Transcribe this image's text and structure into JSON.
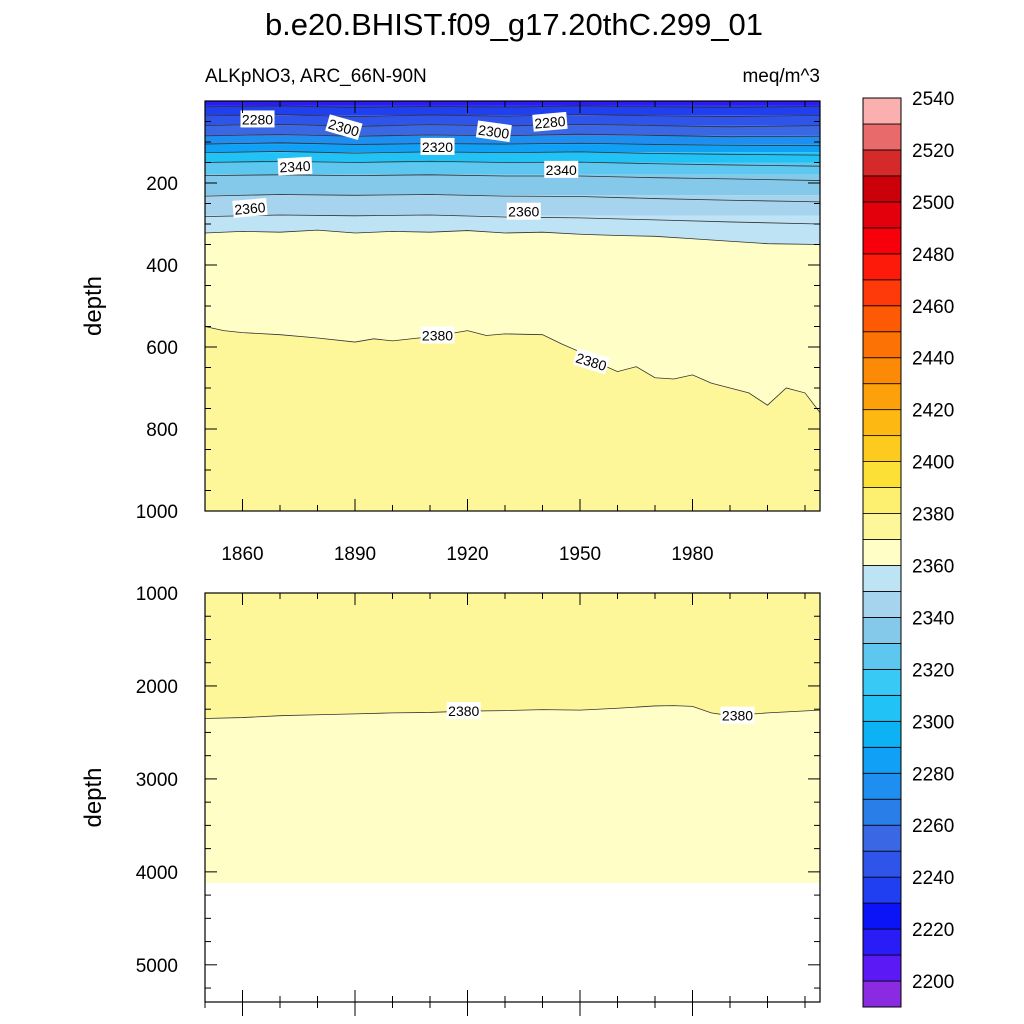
{
  "chart_data": {
    "type": "contour",
    "title": "b.e20.BHIST.f09_g17.20thC.299_01",
    "left_subtitle": "ALKpNO3, ARC_66N-90N",
    "right_subtitle": "meq/m^3",
    "colors": {
      "frame": "#000000",
      "contour_line": "#333333"
    },
    "colorbar": {
      "levels_from": 2200,
      "levels_to": 2560,
      "level_step": 10,
      "tick_labels": [
        "2200",
        "2220",
        "2240",
        "2260",
        "2280",
        "2300",
        "2320",
        "2340",
        "2360",
        "2380",
        "2400",
        "2420",
        "2440",
        "2460",
        "2480",
        "2500",
        "2520",
        "2540"
      ],
      "colors": [
        "#8a2be2",
        "#5b19f5",
        "#2a1cf7",
        "#0a14f7",
        "#1f3ff0",
        "#2f54ea",
        "#3a68e4",
        "#2a7ee8",
        "#1e8ff0",
        "#10a0f5",
        "#0db2f5",
        "#21c2f5",
        "#38caf5",
        "#5ec7f0",
        "#85c9ea",
        "#a6d4ee",
        "#bde3f4",
        "#fefec6",
        "#fef79a",
        "#fdf070",
        "#fde036",
        "#fdcb1d",
        "#fdb812",
        "#fda10a",
        "#fd8a06",
        "#fd7205",
        "#fe5a06",
        "#fe3a0a",
        "#fe1a0a",
        "#f7000c",
        "#e3000c",
        "#cb0009",
        "#d62a2a",
        "#e86a6a",
        "#fbb0b0"
      ]
    },
    "x_axis": {
      "min": 1850,
      "max": 2014,
      "ticks": [
        1860,
        1890,
        1920,
        1950,
        1980
      ],
      "tick_labels": [
        "1860",
        "1890",
        "1920",
        "1950",
        "1980"
      ]
    },
    "panels": [
      {
        "ylabel": "depth",
        "ylim": [
          0,
          1000
        ],
        "y_ticks": [
          200,
          400,
          600,
          800,
          1000
        ],
        "y_tick_labels": [
          "200",
          "400",
          "600",
          "800",
          "1000"
        ],
        "bands": [
          {
            "top": 0,
            "bottom": 12,
            "color": "#2a1cf7"
          },
          {
            "top": 12,
            "bottom": 35,
            "color": "#1f3ff0"
          },
          {
            "top": 35,
            "bottom": 60,
            "color": "#2f54ea"
          },
          {
            "top": 60,
            "bottom": 85,
            "color": "#3a68e4"
          },
          {
            "top": 85,
            "bottom": 105,
            "color": "#1e8ff0"
          },
          {
            "top": 105,
            "bottom": 125,
            "color": "#10a0f5"
          },
          {
            "top": 125,
            "bottom": 150,
            "color": "#21c2f5"
          },
          {
            "top": 150,
            "bottom": 180,
            "color": "#5ec7f0"
          },
          {
            "top": 180,
            "bottom": 230,
            "color": "#85c9ea"
          },
          {
            "top": 230,
            "bottom": 280,
            "color": "#a6d4ee"
          },
          {
            "top": 280,
            "bottom": null,
            "color": "#bde3f4"
          }
        ],
        "boundary_2360": {
          "x": [
            1850,
            1860,
            1870,
            1880,
            1890,
            1900,
            1910,
            1920,
            1930,
            1940,
            1950,
            1960,
            1970,
            1980,
            1990,
            2000,
            2014
          ],
          "y": [
            322,
            318,
            320,
            315,
            322,
            318,
            320,
            316,
            322,
            320,
            325,
            328,
            330,
            336,
            342,
            348,
            350
          ]
        },
        "boundary_2380": {
          "x": [
            1850,
            1855,
            1860,
            1870,
            1880,
            1890,
            1895,
            1900,
            1910,
            1915,
            1920,
            1925,
            1930,
            1940,
            1945,
            1950,
            1955,
            1960,
            1965,
            1970,
            1975,
            1980,
            1985,
            1990,
            1995,
            2000,
            2005,
            2010,
            2014
          ],
          "y": [
            550,
            560,
            565,
            570,
            578,
            588,
            580,
            585,
            575,
            568,
            560,
            572,
            568,
            570,
            592,
            612,
            640,
            660,
            648,
            675,
            678,
            668,
            688,
            700,
            712,
            742,
            700,
            712,
            760
          ]
        },
        "contour_lines": [
          {
            "x": [
              1850,
              1870,
              1890,
              1910,
              1930,
              1950,
              1970,
              1990,
              2014
            ],
            "y": [
              14,
              12,
              16,
              13,
              15,
              12,
              14,
              16,
              13
            ]
          },
          {
            "x": [
              1850,
              1870,
              1890,
              1910,
              1930,
              1950,
              1970,
              1990,
              2014
            ],
            "y": [
              36,
              33,
              38,
              34,
              37,
              33,
              36,
              38,
              35
            ]
          },
          {
            "x": [
              1850,
              1870,
              1890,
              1910,
              1930,
              1950,
              1970,
              1990,
              2014
            ],
            "y": [
              60,
              57,
              62,
              58,
              61,
              57,
              60,
              63,
              60
            ]
          },
          {
            "x": [
              1850,
              1870,
              1890,
              1910,
              1930,
              1950,
              1970,
              1990,
              2014
            ],
            "y": [
              85,
              82,
              86,
              83,
              85,
              81,
              84,
              87,
              86
            ]
          },
          {
            "x": [
              1850,
              1870,
              1890,
              1910,
              1930,
              1950,
              1970,
              1990,
              2014
            ],
            "y": [
              105,
              102,
              106,
              104,
              105,
              103,
              106,
              108,
              109
            ]
          },
          {
            "x": [
              1850,
              1870,
              1890,
              1910,
              1930,
              1950,
              1970,
              1990,
              2014
            ],
            "y": [
              126,
              123,
              127,
              124,
              126,
              124,
              128,
              130,
              132
            ]
          },
          {
            "x": [
              1850,
              1870,
              1890,
              1910,
              1930,
              1950,
              1970,
              1990,
              2014
            ],
            "y": [
              150,
              147,
              150,
              147,
              150,
              149,
              153,
              156,
              159
            ]
          },
          {
            "x": [
              1850,
              1870,
              1890,
              1910,
              1930,
              1950,
              1970,
              1990,
              2014
            ],
            "y": [
              182,
              180,
              182,
              180,
              183,
              183,
              187,
              190,
              194
            ]
          },
          {
            "x": [
              1850,
              1870,
              1890,
              1910,
              1930,
              1950,
              1970,
              1990,
              2014
            ],
            "y": [
              232,
              228,
              230,
              228,
              232,
              233,
              238,
              242,
              246
            ]
          },
          {
            "x": [
              1850,
              1870,
              1890,
              1910,
              1930,
              1950,
              1970,
              1990,
              2014
            ],
            "y": [
              282,
              278,
              280,
              278,
              283,
              285,
              290,
              295,
              300
            ]
          }
        ],
        "labels": [
          {
            "text": "2280",
            "x": 1864,
            "y": 45,
            "angle": 0
          },
          {
            "text": "2300",
            "x": 1887,
            "y": 65,
            "angle": 16
          },
          {
            "text": "2300",
            "x": 1927,
            "y": 75,
            "angle": 8
          },
          {
            "text": "2280",
            "x": 1942,
            "y": 52,
            "angle": -5
          },
          {
            "text": "2320",
            "x": 1912,
            "y": 112,
            "angle": 0
          },
          {
            "text": "2340",
            "x": 1874,
            "y": 160,
            "angle": -3
          },
          {
            "text": "2340",
            "x": 1945,
            "y": 168,
            "angle": 0
          },
          {
            "text": "2360",
            "x": 1862,
            "y": 262,
            "angle": -5
          },
          {
            "text": "2360",
            "x": 1935,
            "y": 270,
            "angle": 0
          },
          {
            "text": "2380",
            "x": 1912,
            "y": 572,
            "angle": 0
          },
          {
            "text": "2380",
            "x": 1953,
            "y": 636,
            "angle": 17
          }
        ]
      },
      {
        "ylabel": "depth",
        "ylim": [
          1000,
          5400
        ],
        "y_ticks": [
          1000,
          2000,
          3000,
          4000,
          5000
        ],
        "y_tick_labels": [
          "1000",
          "2000",
          "3000",
          "4000",
          "5000"
        ],
        "bottom_depth": 4120,
        "bands": [
          {
            "top": 1000,
            "bottom": null,
            "color": "#fef79a"
          }
        ],
        "boundary_2380": {
          "x": [
            1850,
            1860,
            1870,
            1880,
            1890,
            1900,
            1910,
            1920,
            1930,
            1940,
            1950,
            1960,
            1970,
            1975,
            1980,
            1985,
            1990,
            2000,
            2014
          ],
          "y": [
            2350,
            2340,
            2320,
            2310,
            2300,
            2290,
            2285,
            2270,
            2265,
            2255,
            2260,
            2240,
            2215,
            2212,
            2220,
            2290,
            2320,
            2290,
            2260
          ]
        },
        "labels": [
          {
            "text": "2380",
            "x": 1919,
            "y": 2270,
            "angle": 0
          },
          {
            "text": "2380",
            "x": 1992,
            "y": 2320,
            "angle": 0
          }
        ]
      }
    ]
  }
}
